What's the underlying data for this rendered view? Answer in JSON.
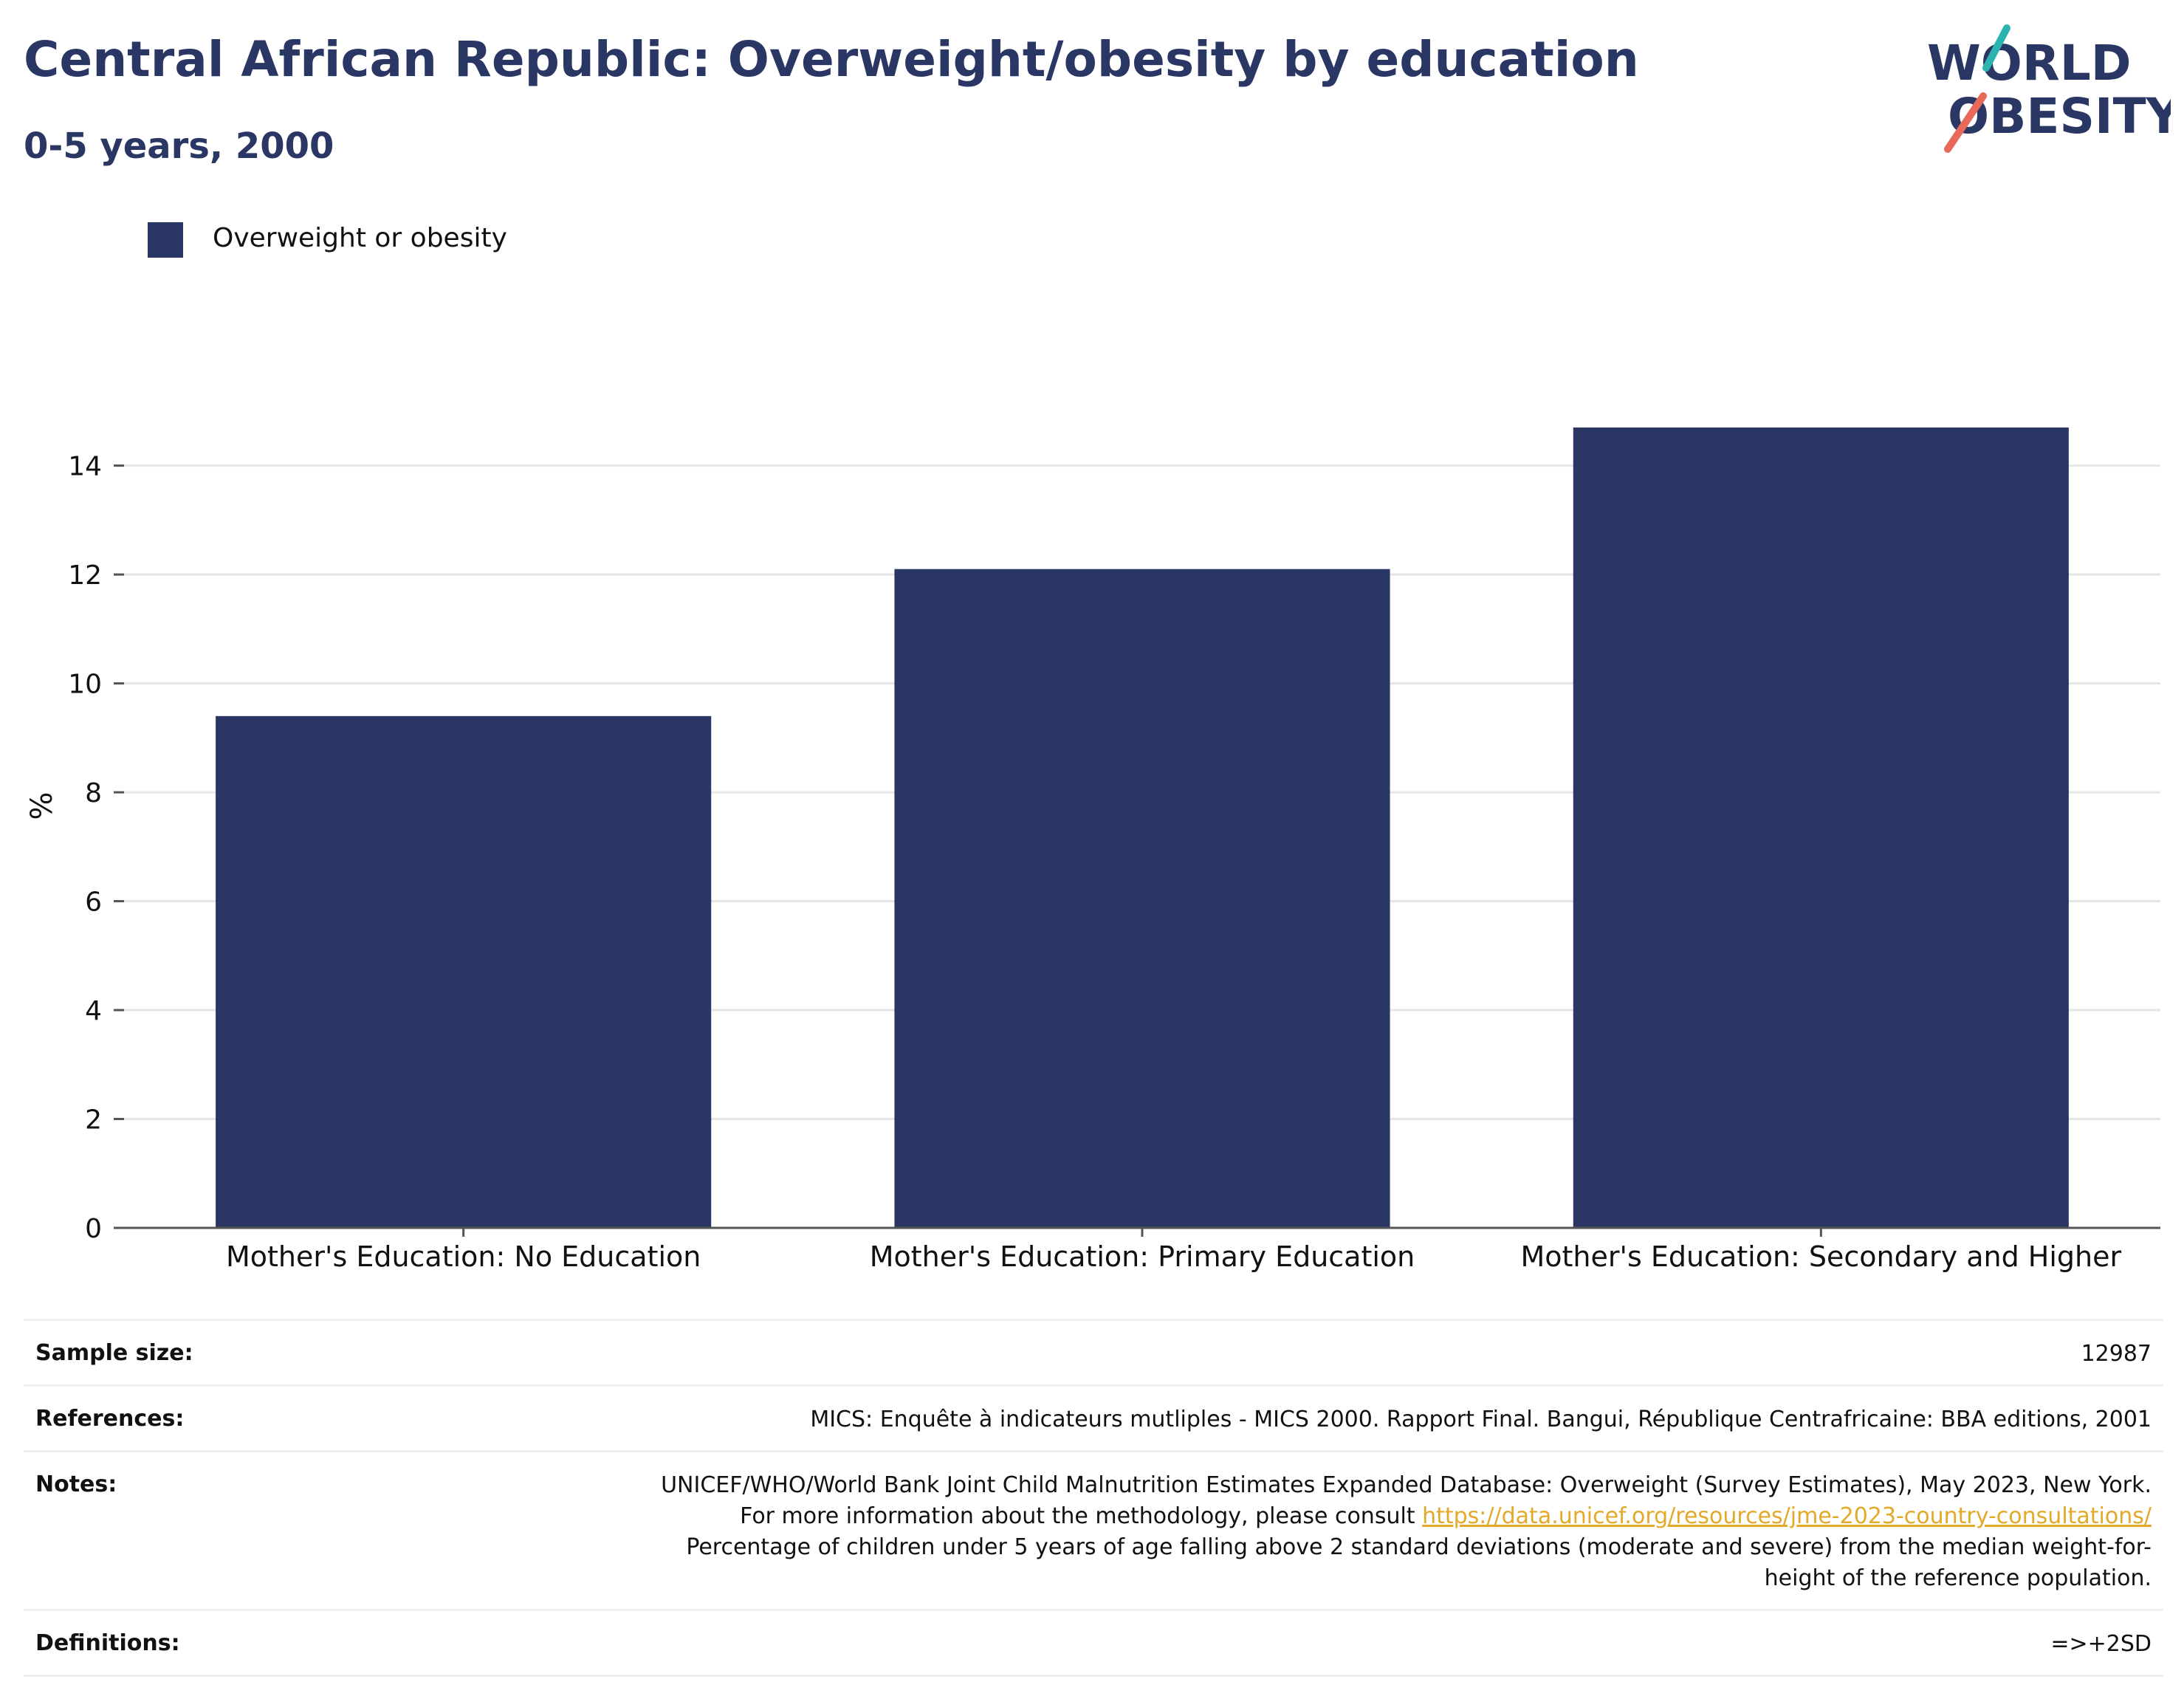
{
  "title": "Central African Republic: Overweight/obesity by education",
  "subtitle": "0-5 years, 2000",
  "logo": {
    "line1": "WORLD",
    "line2": "OBESITY",
    "accent_colors": [
      "#2bb3b1",
      "#e8685a"
    ]
  },
  "colors": {
    "title": "#2a3664",
    "bar": "#2a3664",
    "grid": "#e6e6e6",
    "axis": "#555555"
  },
  "chart_data": {
    "type": "bar",
    "categories": [
      "Mother's Education: No Education",
      "Mother's Education: Primary Education",
      "Mother's Education: Secondary and Higher"
    ],
    "series": [
      {
        "name": "Overweight or obesity",
        "values": [
          9.4,
          12.1,
          14.7
        ]
      }
    ],
    "ylabel": "%",
    "ylim": [
      0,
      15.5
    ],
    "yticks": [
      0,
      2,
      4,
      6,
      8,
      10,
      12,
      14
    ],
    "grid": true,
    "legend_placement": "top-left"
  },
  "info": {
    "sample_size_label": "Sample size:",
    "sample_size_value": "12987",
    "references_label": "References:",
    "references_value": "MICS: Enquête à indicateurs mutliples - MICS 2000. Rapport Final. Bangui, République Centrafricaine: BBA editions, 2001",
    "notes_label": "Notes:",
    "notes_text_1": "UNICEF/WHO/World Bank Joint Child Malnutrition Estimates Expanded Database: Overweight (Survey Estimates), May 2023, New York. For more information about the methodology, please consult ",
    "notes_link": "https://data.unicef.org/resources/jme-2023-country-consultations/",
    "notes_text_2": "Percentage of children under 5 years of age falling above 2 standard deviations (moderate and severe) from the median weight-for-height of the reference population.",
    "definitions_label": "Definitions:",
    "definitions_value": "=>+2SD"
  }
}
